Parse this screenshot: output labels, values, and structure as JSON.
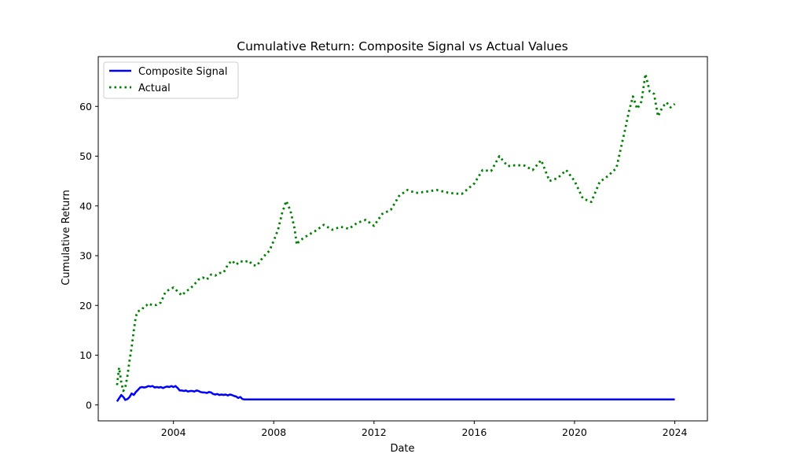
{
  "chart_data": {
    "type": "line",
    "title": "Cumulative Return: Composite Signal vs Actual Values",
    "xlabel": "Date",
    "ylabel": "Cumulative Return",
    "xlim": [
      2001.0,
      2025.3
    ],
    "ylim": [
      -3.2,
      70.0
    ],
    "x_ticks": [
      2004,
      2008,
      2012,
      2016,
      2020,
      2024
    ],
    "y_ticks": [
      0,
      10,
      20,
      30,
      40,
      50,
      60
    ],
    "grid": false,
    "legend_position": "upper-left",
    "series": [
      {
        "name": "Composite Signal",
        "color": "#0000ff",
        "style": "solid",
        "x": [
          2001.75,
          2001.92,
          2002.0,
          2002.08,
          2002.17,
          2002.25,
          2002.33,
          2002.42,
          2002.5,
          2002.58,
          2002.67,
          2002.75,
          2002.83,
          2002.92,
          2003.0,
          2003.08,
          2003.17,
          2003.25,
          2003.33,
          2003.42,
          2003.5,
          2003.58,
          2003.67,
          2003.75,
          2003.83,
          2003.92,
          2004.0,
          2004.08,
          2004.17,
          2004.25,
          2004.33,
          2004.42,
          2004.5,
          2004.58,
          2004.67,
          2004.75,
          2004.83,
          2004.92,
          2005.0,
          2005.08,
          2005.17,
          2005.25,
          2005.33,
          2005.42,
          2005.5,
          2005.58,
          2005.67,
          2005.75,
          2005.83,
          2005.92,
          2006.0,
          2006.08,
          2006.17,
          2006.25,
          2006.33,
          2006.42,
          2006.5,
          2006.58,
          2006.67,
          2006.75,
          2006.83,
          2006.92,
          2007.0,
          2007.08,
          2007.17,
          2008.0,
          2012.0,
          2016.0,
          2020.0,
          2024.0
        ],
        "y": [
          0.7,
          2.0,
          1.6,
          1.0,
          1.2,
          1.6,
          2.3,
          2.0,
          2.6,
          3.0,
          3.5,
          3.6,
          3.5,
          3.6,
          3.8,
          3.7,
          3.8,
          3.5,
          3.6,
          3.5,
          3.6,
          3.4,
          3.6,
          3.7,
          3.6,
          3.8,
          3.6,
          3.8,
          3.4,
          2.9,
          2.9,
          2.8,
          2.9,
          2.7,
          2.8,
          2.8,
          2.7,
          2.9,
          2.8,
          2.6,
          2.5,
          2.5,
          2.4,
          2.6,
          2.5,
          2.2,
          2.1,
          2.2,
          2.0,
          2.1,
          2.0,
          2.1,
          1.9,
          2.1,
          2.0,
          1.8,
          1.7,
          1.4,
          1.6,
          1.2,
          1.1,
          1.1,
          1.1,
          1.1,
          1.1,
          1.1,
          1.1,
          1.1,
          1.1,
          1.1
        ]
      },
      {
        "name": "Actual",
        "color": "#008000",
        "style": "dotted",
        "x": [
          2001.75,
          2001.83,
          2001.92,
          2002.0,
          2002.08,
          2002.17,
          2002.25,
          2002.33,
          2002.42,
          2002.5,
          2002.58,
          2002.67,
          2002.75,
          2002.83,
          2002.92,
          2003.0,
          2003.17,
          2003.33,
          2003.5,
          2003.67,
          2003.83,
          2004.0,
          2004.17,
          2004.33,
          2004.5,
          2004.67,
          2004.83,
          2005.0,
          2005.17,
          2005.33,
          2005.5,
          2005.67,
          2005.83,
          2006.0,
          2006.17,
          2006.33,
          2006.5,
          2006.67,
          2006.83,
          2007.0,
          2007.17,
          2007.33,
          2007.5,
          2007.67,
          2007.83,
          2008.0,
          2008.17,
          2008.33,
          2008.5,
          2008.67,
          2008.83,
          2008.92,
          2009.0,
          2009.17,
          2009.33,
          2009.5,
          2009.67,
          2010.0,
          2010.33,
          2010.67,
          2011.0,
          2011.33,
          2011.67,
          2012.0,
          2012.33,
          2012.67,
          2013.0,
          2013.33,
          2013.67,
          2014.0,
          2014.5,
          2015.0,
          2015.5,
          2016.0,
          2016.33,
          2016.67,
          2017.0,
          2017.33,
          2017.67,
          2018.0,
          2018.33,
          2018.67,
          2019.0,
          2019.33,
          2019.67,
          2020.0,
          2020.33,
          2020.67,
          2021.0,
          2021.33,
          2021.67,
          2022.0,
          2022.17,
          2022.33,
          2022.5,
          2022.67,
          2022.83,
          2023.0,
          2023.17,
          2023.33,
          2023.5,
          2023.67,
          2023.83,
          2024.0
        ],
        "y": [
          4.0,
          7.5,
          4.5,
          2.8,
          3.5,
          6.0,
          9.0,
          11.5,
          15.0,
          17.8,
          18.8,
          19.0,
          19.2,
          19.8,
          20.0,
          20.4,
          20.0,
          20.1,
          20.6,
          22.6,
          23.2,
          23.6,
          22.8,
          22.0,
          22.8,
          23.4,
          24.2,
          25.2,
          25.6,
          25.2,
          26.2,
          26.0,
          26.5,
          26.6,
          28.2,
          29.0,
          28.2,
          28.9,
          28.7,
          29.0,
          28.1,
          28.0,
          29.2,
          30.2,
          31.0,
          33.0,
          35.2,
          38.5,
          41.0,
          39.0,
          35.5,
          32.2,
          32.8,
          33.5,
          34.0,
          34.5,
          35.0,
          36.2,
          35.2,
          35.8,
          35.4,
          36.6,
          37.2,
          36.0,
          38.4,
          39.2,
          42.0,
          43.2,
          42.6,
          42.8,
          43.2,
          42.6,
          42.4,
          44.5,
          47.2,
          47.0,
          50.0,
          48.0,
          48.2,
          48.1,
          47.2,
          49.2,
          45.0,
          45.6,
          47.2,
          45.0,
          41.5,
          40.8,
          44.8,
          46.0,
          47.6,
          55.0,
          59.0,
          62.0,
          59.5,
          61.0,
          66.5,
          63.0,
          62.5,
          58.0,
          59.8,
          60.8,
          59.8,
          60.5
        ]
      }
    ]
  }
}
